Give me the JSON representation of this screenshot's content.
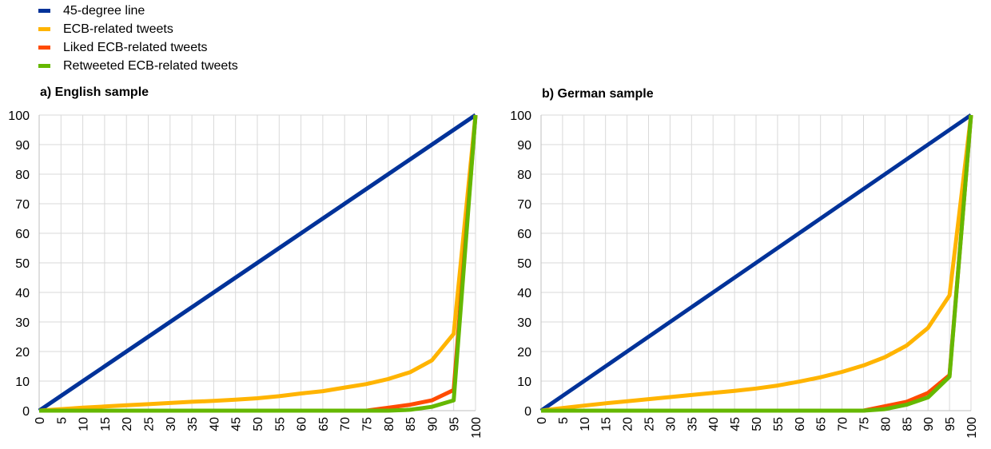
{
  "legend": [
    {
      "label": "45-degree line",
      "color": "#003299"
    },
    {
      "label": "ECB-related tweets",
      "color": "#FFB400"
    },
    {
      "label": "Liked ECB-related tweets",
      "color": "#FF4B00"
    },
    {
      "label": "Retweeted ECB-related tweets",
      "color": "#65B800"
    }
  ],
  "chart_data": [
    {
      "type": "line",
      "title": "a) English sample",
      "xlabel": "",
      "ylabel": "",
      "xlim": [
        0,
        100
      ],
      "ylim": [
        0,
        100
      ],
      "grid": true,
      "x": [
        0,
        5,
        10,
        15,
        20,
        25,
        30,
        35,
        40,
        45,
        50,
        55,
        60,
        65,
        70,
        75,
        80,
        85,
        90,
        95,
        100
      ],
      "xticks": [
        "0",
        "5",
        "10",
        "15",
        "20",
        "25",
        "30",
        "35",
        "40",
        "45",
        "50",
        "55",
        "60",
        "65",
        "70",
        "75",
        "80",
        "85",
        "90",
        "95",
        "100"
      ],
      "yticks": [
        "0",
        "10",
        "20",
        "30",
        "40",
        "50",
        "60",
        "70",
        "80",
        "90",
        "100"
      ],
      "series": [
        {
          "name": "45-degree line",
          "color": "#003299",
          "values": [
            0,
            5,
            10,
            15,
            20,
            25,
            30,
            35,
            40,
            45,
            50,
            55,
            60,
            65,
            70,
            75,
            80,
            85,
            90,
            95,
            100
          ]
        },
        {
          "name": "ECB-related tweets",
          "color": "#FFB400",
          "values": [
            0,
            0.5,
            1,
            1.4,
            1.8,
            2.2,
            2.6,
            3,
            3.3,
            3.7,
            4.2,
            4.9,
            5.8,
            6.6,
            7.8,
            9,
            10.7,
            13,
            17,
            26,
            100
          ]
        },
        {
          "name": "Liked ECB-related tweets",
          "color": "#FF4B00",
          "values": [
            0,
            0,
            0,
            0,
            0,
            0,
            0,
            0,
            0,
            0,
            0,
            0,
            0,
            0,
            0,
            0,
            1,
            2,
            3.5,
            7,
            100
          ]
        },
        {
          "name": "Retweeted ECB-related tweets",
          "color": "#65B800",
          "values": [
            0,
            0,
            0,
            0,
            0,
            0,
            0,
            0,
            0,
            0,
            0,
            0,
            0,
            0,
            0,
            0,
            0,
            0.3,
            1.3,
            3.5,
            100
          ]
        }
      ]
    },
    {
      "type": "line",
      "title": "b) German sample",
      "xlabel": "",
      "ylabel": "",
      "xlim": [
        0,
        100
      ],
      "ylim": [
        0,
        100
      ],
      "grid": true,
      "x": [
        0,
        5,
        10,
        15,
        20,
        25,
        30,
        35,
        40,
        45,
        50,
        55,
        60,
        65,
        70,
        75,
        80,
        85,
        90,
        95,
        100
      ],
      "xticks": [
        "0",
        "5",
        "10",
        "15",
        "20",
        "25",
        "30",
        "35",
        "40",
        "45",
        "50",
        "55",
        "60",
        "65",
        "70",
        "75",
        "80",
        "85",
        "90",
        "95",
        "100"
      ],
      "yticks": [
        "0",
        "10",
        "20",
        "30",
        "40",
        "50",
        "60",
        "70",
        "80",
        "90",
        "100"
      ],
      "series": [
        {
          "name": "45-degree line",
          "color": "#003299",
          "values": [
            0,
            5,
            10,
            15,
            20,
            25,
            30,
            35,
            40,
            45,
            50,
            55,
            60,
            65,
            70,
            75,
            80,
            85,
            90,
            95,
            100
          ]
        },
        {
          "name": "ECB-related tweets",
          "color": "#FFB400",
          "values": [
            0,
            0.9,
            1.7,
            2.5,
            3.2,
            3.9,
            4.6,
            5.3,
            6,
            6.7,
            7.5,
            8.5,
            9.8,
            11.3,
            13.1,
            15.3,
            18.1,
            22,
            28,
            39,
            100
          ]
        },
        {
          "name": "Liked ECB-related tweets",
          "color": "#FF4B00",
          "values": [
            0,
            0,
            0,
            0,
            0,
            0,
            0,
            0,
            0,
            0,
            0,
            0,
            0,
            0,
            0,
            0,
            1.5,
            3,
            6,
            12,
            100
          ]
        },
        {
          "name": "Retweeted ECB-related tweets",
          "color": "#65B800",
          "values": [
            0,
            0,
            0,
            0,
            0,
            0,
            0,
            0,
            0,
            0,
            0,
            0,
            0,
            0,
            0,
            0,
            0.5,
            2,
            4.5,
            11.5,
            100
          ]
        }
      ]
    }
  ]
}
